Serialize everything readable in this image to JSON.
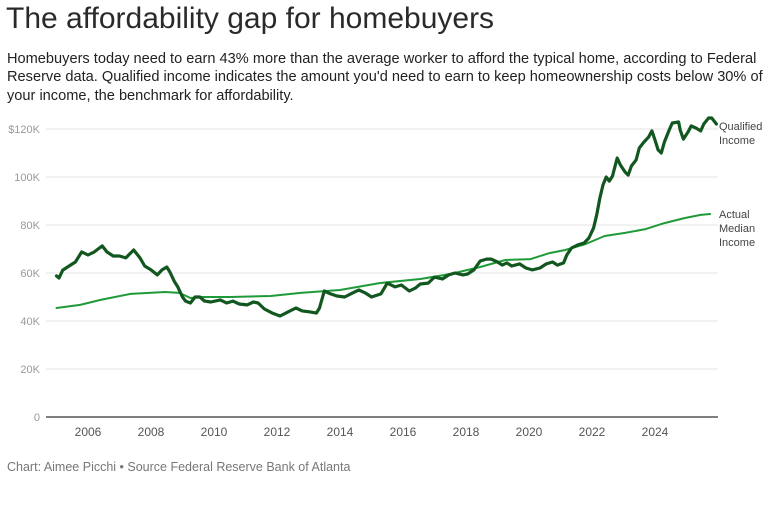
{
  "header": {
    "title": "The affordability gap for homebuyers",
    "subtitle": "Homebuyers today need to earn 43% more than the average worker to afford the typical home, according to Federal Reserve data. Qualified income indicates the amount you'd need to earn to keep homeownership costs below 30% of your income, the benchmark for affordability."
  },
  "footer": {
    "credit": "Chart: Aimee Picchi • Source Federal Reserve Bank of Atlanta"
  },
  "colors": {
    "qualified": "#12571f",
    "median": "#1f9a38",
    "grid": "#e3e3e3",
    "axis": "#333333"
  },
  "chart_data": {
    "type": "line",
    "title": "The affordability gap for homebuyers",
    "xlabel": "",
    "ylabel": "",
    "xlim": [
      2004.7,
      2026.0
    ],
    "ylim": [
      0,
      120
    ],
    "grid": true,
    "legend": "direct labels at right end of lines",
    "y_ticks": [
      {
        "value": 0,
        "label": "0"
      },
      {
        "value": 20,
        "label": "20K"
      },
      {
        "value": 40,
        "label": "40K"
      },
      {
        "value": 60,
        "label": "60K"
      },
      {
        "value": 80,
        "label": "80K"
      },
      {
        "value": 100,
        "label": "100K"
      },
      {
        "value": 120,
        "label": "$120K"
      }
    ],
    "x_ticks": [
      {
        "value": 2006,
        "label": "2006"
      },
      {
        "value": 2008,
        "label": "2008"
      },
      {
        "value": 2010,
        "label": "2010"
      },
      {
        "value": 2012,
        "label": "2012"
      },
      {
        "value": 2014,
        "label": "2014"
      },
      {
        "value": 2016,
        "label": "2016"
      },
      {
        "value": 2018,
        "label": "2018"
      },
      {
        "value": 2020,
        "label": "2020"
      },
      {
        "value": 2022,
        "label": "2022"
      },
      {
        "value": 2024,
        "label": "2024"
      }
    ],
    "series": [
      {
        "name": "Qualified Income",
        "label_lines": [
          "Qualified",
          "Income"
        ],
        "units": "thousands of dollars",
        "x": [
          2005.0,
          2005.08,
          2005.2,
          2005.4,
          2005.6,
          2005.8,
          2006.0,
          2006.2,
          2006.45,
          2006.6,
          2006.8,
          2007.0,
          2007.2,
          2007.35,
          2007.45,
          2007.65,
          2007.8,
          2008.0,
          2008.2,
          2008.35,
          2008.5,
          2008.6,
          2008.75,
          2008.85,
          2009.0,
          2009.1,
          2009.25,
          2009.4,
          2009.55,
          2009.7,
          2009.9,
          2010.2,
          2010.4,
          2010.6,
          2010.8,
          2011.05,
          2011.25,
          2011.4,
          2011.6,
          2011.85,
          2012.1,
          2012.35,
          2012.6,
          2012.8,
          2013.05,
          2013.25,
          2013.35,
          2013.5,
          2013.7,
          2013.9,
          2014.15,
          2014.4,
          2014.6,
          2014.8,
          2015.0,
          2015.3,
          2015.5,
          2015.75,
          2015.95,
          2016.2,
          2016.4,
          2016.55,
          2016.8,
          2017.0,
          2017.25,
          2017.45,
          2017.65,
          2017.9,
          2018.05,
          2018.25,
          2018.45,
          2018.65,
          2018.8,
          2019.0,
          2019.15,
          2019.3,
          2019.45,
          2019.7,
          2019.9,
          2020.1,
          2020.35,
          2020.55,
          2020.75,
          2020.9,
          2021.1,
          2021.2,
          2021.35,
          2021.55,
          2021.75,
          2021.9,
          2022.05,
          2022.15,
          2022.25,
          2022.35,
          2022.45,
          2022.55,
          2022.65,
          2022.8,
          2022.9,
          2023.05,
          2023.15,
          2023.25,
          2023.4,
          2023.5,
          2023.65,
          2023.8,
          2023.9,
          2024.0,
          2024.1,
          2024.2,
          2024.3,
          2024.45,
          2024.55,
          2024.75,
          2024.8,
          2024.9,
          2025.05,
          2025.15,
          2025.3,
          2025.45,
          2025.55,
          2025.7,
          2025.8,
          2025.95
        ],
        "values": [
          58.8,
          57.9,
          61.2,
          62.9,
          64.6,
          68.8,
          67.5,
          68.8,
          71.3,
          68.8,
          67.1,
          67.1,
          66.3,
          68.3,
          69.6,
          66.3,
          62.9,
          61.3,
          59.2,
          61.3,
          62.5,
          60.4,
          56.3,
          54.2,
          50.0,
          48.3,
          47.5,
          50.0,
          50.0,
          48.3,
          47.9,
          48.8,
          47.5,
          48.3,
          47.1,
          46.7,
          47.9,
          47.5,
          45.0,
          43.3,
          42.1,
          43.8,
          45.4,
          44.2,
          43.8,
          43.3,
          45.4,
          52.5,
          51.3,
          50.4,
          50.0,
          51.7,
          52.9,
          51.7,
          50.0,
          51.3,
          55.8,
          54.2,
          55.0,
          52.5,
          53.8,
          55.4,
          55.8,
          58.3,
          57.5,
          59.2,
          60.0,
          59.2,
          59.6,
          61.3,
          65.0,
          65.8,
          65.8,
          64.6,
          63.3,
          64.2,
          62.9,
          63.8,
          62.1,
          61.3,
          62.1,
          63.8,
          64.6,
          63.3,
          64.2,
          67.5,
          70.4,
          71.7,
          72.5,
          74.6,
          78.8,
          84.2,
          91.3,
          96.7,
          100.0,
          98.3,
          100.4,
          107.9,
          105.0,
          102.1,
          100.8,
          104.6,
          107.1,
          112.1,
          114.6,
          116.7,
          119.2,
          115.4,
          111.3,
          110.0,
          114.6,
          119.6,
          122.5,
          122.9,
          119.6,
          115.8,
          118.8,
          121.3,
          120.4,
          119.2,
          122.1,
          124.6,
          124.6,
          122.1
        ]
      },
      {
        "name": "Actual Median Income",
        "label_lines": [
          "Actual",
          "Median",
          "Income"
        ],
        "units": "thousands of dollars",
        "x": [
          2005.0,
          2005.75,
          2006.4,
          2007.35,
          2007.95,
          2008.45,
          2008.9,
          2009.25,
          2009.55,
          2010.5,
          2011.8,
          2012.75,
          2014.0,
          2015.25,
          2016.55,
          2017.5,
          2018.45,
          2019.25,
          2020.05,
          2020.65,
          2021.15,
          2021.8,
          2022.4,
          2023.05,
          2023.7,
          2024.3,
          2024.95,
          2025.45,
          2025.75
        ],
        "values": [
          45.4,
          46.7,
          48.8,
          51.3,
          51.7,
          52.1,
          51.7,
          49.6,
          50.0,
          50.0,
          50.4,
          51.7,
          52.9,
          55.8,
          57.5,
          59.6,
          62.5,
          65.4,
          65.8,
          68.3,
          69.6,
          72.1,
          75.4,
          76.7,
          78.3,
          80.8,
          82.9,
          84.2,
          84.6
        ]
      }
    ]
  }
}
